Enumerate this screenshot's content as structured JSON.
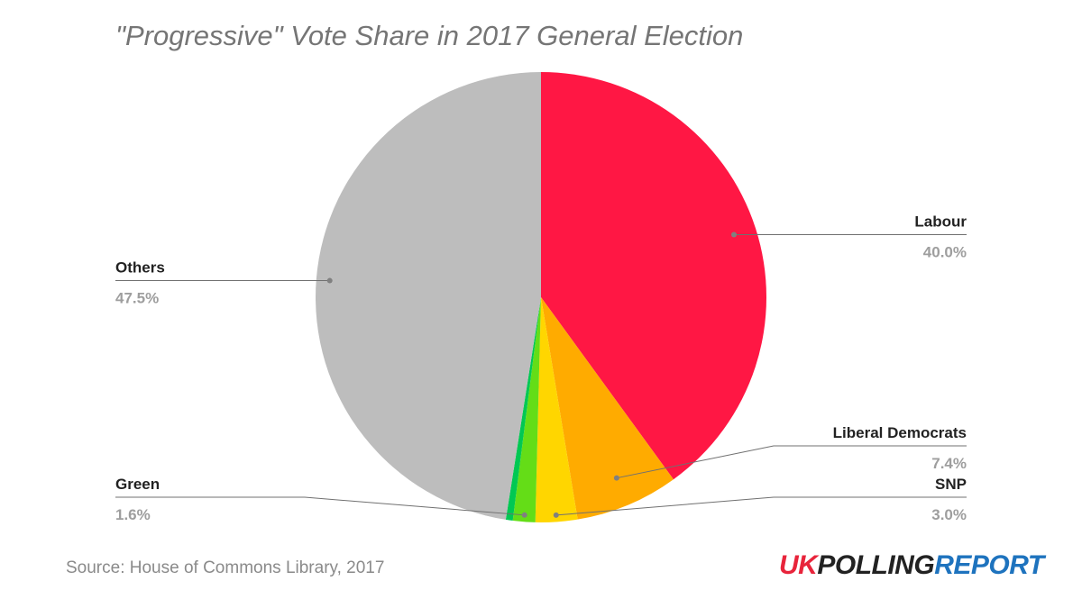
{
  "chart_data": {
    "type": "pie",
    "title": "\"Progressive\" Vote Share in 2017 General Election",
    "slices": [
      {
        "label": "Labour",
        "value": 40.0,
        "display": "40.0%",
        "color": "#ff1744",
        "label_side": "right"
      },
      {
        "label": "Liberal Democrats",
        "value": 7.4,
        "display": "7.4%",
        "color": "#ffab00",
        "label_side": "right"
      },
      {
        "label": "SNP",
        "value": 3.0,
        "display": "3.0%",
        "color": "#ffd600",
        "label_side": "right"
      },
      {
        "label": "Green",
        "value": 1.6,
        "display": "1.6%",
        "color": "#64dd17",
        "label_side": "left"
      },
      {
        "label": "",
        "value": 0.5,
        "display": "",
        "color": "#00c853",
        "label_side": "none"
      },
      {
        "label": "Others",
        "value": 47.5,
        "display": "47.5%",
        "color": "#bdbdbd",
        "label_side": "left"
      }
    ],
    "start_angle": "12 o'clock",
    "direction": "clockwise",
    "legend": "none"
  },
  "footer": {
    "source": "Source: House of Commons Library, 2017"
  },
  "logo": {
    "uk": "UK",
    "polling": "POLLING",
    "report": "REPORT"
  }
}
